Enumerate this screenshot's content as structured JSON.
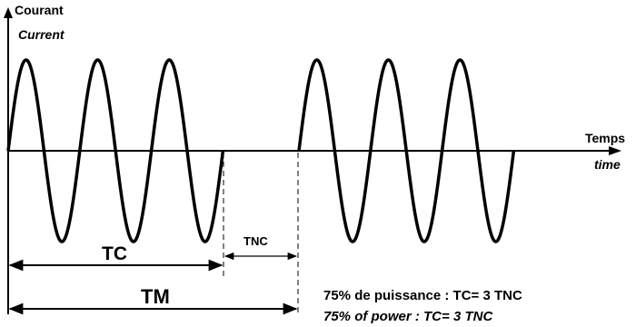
{
  "axes": {
    "y_label_fr": "Courant",
    "y_label_en": "Current",
    "x_label_fr": "Temps",
    "x_label_en": "time"
  },
  "dimensions": {
    "tc": "TC",
    "tnc": "TNC",
    "tm": "TM"
  },
  "caption": {
    "line_fr": "75% de puissance : TC= 3 TNC",
    "line_en": "75% of power : TC= 3 TNC"
  },
  "waveform": {
    "burst_1_cycles": 3,
    "burst_2_cycles": 3
  },
  "colors": {
    "ink": "#000000",
    "background": "#ffffff"
  }
}
